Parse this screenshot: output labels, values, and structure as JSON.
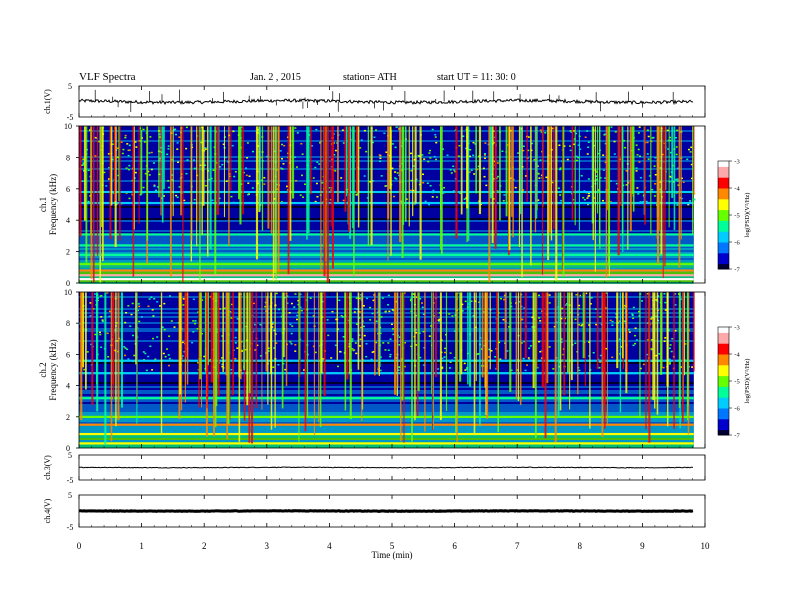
{
  "header": {
    "title": "VLF  Spectra",
    "date": "Jan.  2  , 2015",
    "station": "station= ATH",
    "start": "start  UT  =    11: 30: 0"
  },
  "chart_data": [
    {
      "type": "line",
      "panel": "ch1-waveform",
      "ylabel": "ch.1(V)",
      "ylim": [
        -5,
        5
      ],
      "yticks": [
        "5",
        "-5"
      ],
      "series": [
        {
          "baseline": 0,
          "amplitude_note": "noisy waveform near 0 V with sharp spikes"
        }
      ]
    },
    {
      "type": "heatmap",
      "panel": "ch1-spectrogram",
      "ylabel": "ch.1\nFrequency  (kHz)",
      "ylabel_lines": [
        "ch.1",
        "Frequency  (kHz)"
      ],
      "ylim": [
        0,
        10
      ],
      "yticks": [
        "0",
        "2",
        "4",
        "6",
        "8",
        "10"
      ],
      "colorbar": {
        "label": "log(PSD)(V²/Hz)",
        "range": [
          -7,
          -3
        ],
        "ticks": [
          "-3",
          "-4",
          "-5",
          "-6",
          "-7"
        ]
      },
      "bands_khz": [
        {
          "f": 0.25,
          "level": -3.2
        },
        {
          "f": 0.5,
          "level": -3.4
        },
        {
          "f": 0.8,
          "level": -4.2
        },
        {
          "f": 1.2,
          "level": -5.2
        },
        {
          "f": 1.8,
          "level": -5.5
        },
        {
          "f": 2.4,
          "level": -5.6
        },
        {
          "f": 3.1,
          "level": -5.6
        },
        {
          "f": 5.1,
          "level": -6.0
        },
        {
          "f": 5.8,
          "level": -5.8
        }
      ]
    },
    {
      "type": "heatmap",
      "panel": "ch2-spectrogram",
      "ylabel": "ch.2\nFrequency  (kHz)",
      "ylabel_lines": [
        "ch.2",
        "Frequency  (kHz)"
      ],
      "ylim": [
        0,
        10
      ],
      "yticks": [
        "0",
        "2",
        "4",
        "6",
        "8",
        "10"
      ],
      "colorbar": {
        "label": "log(PSD)(V²/Hz)",
        "range": [
          -7,
          -3
        ],
        "ticks": [
          "-3",
          "-4",
          "-5",
          "-6",
          "-7"
        ]
      },
      "bands_khz": [
        {
          "f": 0.3,
          "level": -4.6
        },
        {
          "f": 0.9,
          "level": -4.4
        },
        {
          "f": 1.5,
          "level": -4.2
        },
        {
          "f": 2.0,
          "level": -5.0
        },
        {
          "f": 3.2,
          "level": -5.6
        },
        {
          "f": 4.8,
          "level": -6.0
        },
        {
          "f": 5.6,
          "level": -5.8
        }
      ]
    },
    {
      "type": "line",
      "panel": "ch3-waveform",
      "ylabel": "ch.3(V)",
      "ylim": [
        -5,
        5
      ],
      "yticks": [
        "5",
        "-5"
      ],
      "series": [
        {
          "baseline": 0
        }
      ]
    },
    {
      "type": "line",
      "panel": "ch4-waveform",
      "ylabel": "ch.4(V)",
      "ylim": [
        -5,
        5
      ],
      "yticks": [
        "5",
        "-5"
      ],
      "series": [
        {
          "baseline": 0
        }
      ]
    }
  ],
  "x_axis": {
    "label": "Time  (min)",
    "xlim": [
      0,
      10
    ],
    "ticks": [
      "0",
      "1",
      "2",
      "3",
      "4",
      "5",
      "6",
      "7",
      "8",
      "9",
      "10"
    ],
    "data_end": 9.82
  },
  "colors": {
    "colormap": [
      "#000033",
      "#0000cc",
      "#0077ff",
      "#00ccff",
      "#00ff99",
      "#66ff00",
      "#ffff00",
      "#ff8800",
      "#ff0000",
      "#ffaaaa",
      "#ffffff"
    ]
  }
}
